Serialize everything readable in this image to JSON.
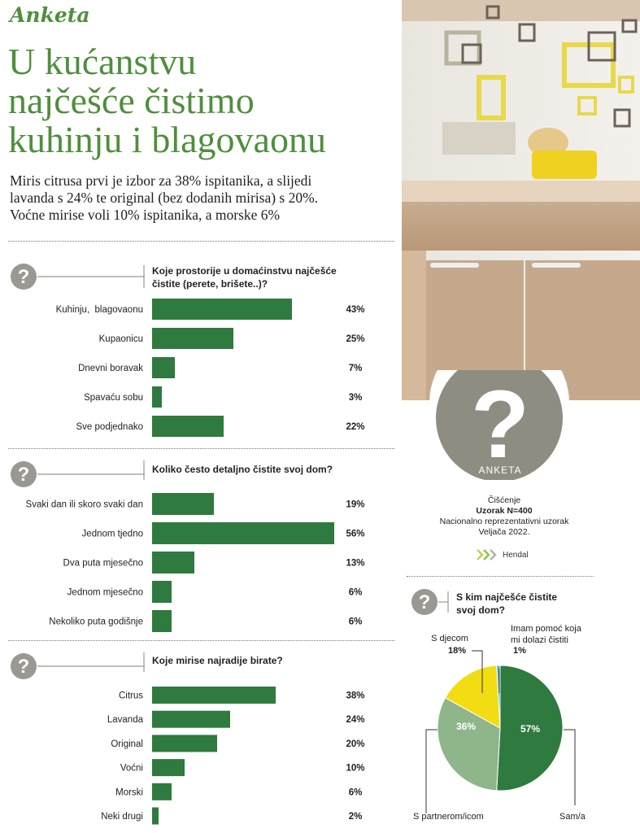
{
  "header": {
    "kicker": "Anketa",
    "headline_lines": [
      "U kućanstvu",
      "najčešće čistimo",
      "kuhinju i blagovaonu"
    ],
    "intro_lines": [
      "Miris citrusa prvi je izbor za 38% ispitanika, a slijedi",
      "lavanda s 24% te original (bez dodanih mirisa) s 20%.",
      "Voćne mirise voli 10% ispitanika, a morske 6%"
    ]
  },
  "survey_info": {
    "badge_label": "ANKETA",
    "badge_symbol": "?",
    "topic": "Čišćenje",
    "sample": "Uzorak N=400",
    "sample_type": "Nacionalno reprezentativni uzorak",
    "date": "Veljača 2022.",
    "brand_name": "Hendal"
  },
  "question_icon_symbol": "?",
  "colors": {
    "green": "#2f7a3f",
    "headline_green": "#4f8f3c",
    "light_green": "#8fb58a",
    "yellow": "#f2dc12",
    "cyan": "#38b7d9",
    "gray_icon": "#9a9892",
    "badge_gray": "#8f8c82"
  },
  "chart_data": [
    {
      "type": "bar",
      "orientation": "horizontal",
      "title_lines": [
        "Koje prostorije u domaćinstvu najčešće",
        "čistite (perete, brišete..)?"
      ],
      "categories": [
        "Kuhinju,  blagovaonu",
        "Kupaonicu",
        "Dnevni boravak",
        "Spavaću sobu",
        "Sve podjednako"
      ],
      "values": [
        43,
        25,
        7,
        3,
        22
      ],
      "labels": [
        "43%",
        "25%",
        "7%",
        "3%",
        "22%"
      ],
      "unit": "%",
      "xlim": [
        0,
        56
      ]
    },
    {
      "type": "bar",
      "orientation": "horizontal",
      "title_lines": [
        "Koliko često detaljno čistite svoj dom?"
      ],
      "categories": [
        "Svaki dan ili skoro svaki dan",
        "Jednom tjedno",
        "Dva puta mjesečno",
        "Jednom mjesečno",
        "Nekoliko puta godišnje"
      ],
      "values": [
        19,
        56,
        13,
        6,
        6
      ],
      "labels": [
        "19%",
        "56%",
        "13%",
        "6%",
        "6%"
      ],
      "unit": "%",
      "xlim": [
        0,
        56
      ]
    },
    {
      "type": "bar",
      "orientation": "horizontal",
      "title_lines": [
        "Koje mirise najradije birate?"
      ],
      "categories": [
        "Citrus",
        "Lavanda",
        "Original",
        "Voćni",
        "Morski",
        "Neki drugi"
      ],
      "values": [
        38,
        24,
        20,
        10,
        6,
        2
      ],
      "labels": [
        "38%",
        "24%",
        "20%",
        "10%",
        "6%",
        "2%"
      ],
      "unit": "%",
      "xlim": [
        0,
        56
      ]
    },
    {
      "type": "pie",
      "title_lines": [
        "S kim najčešće čistite",
        "svoj dom?"
      ],
      "slices": [
        {
          "name": "Sam/a",
          "value": 57,
          "label": "57%"
        },
        {
          "name": "S partnerom/icom",
          "value": 36,
          "label": "36%"
        },
        {
          "name": "S djecom",
          "value": 18,
          "label": "18%"
        },
        {
          "name_lines": [
            "Imam  pomoć koja",
            "mi dolazi čistiti"
          ],
          "value": 1,
          "label": "1%"
        }
      ]
    }
  ]
}
